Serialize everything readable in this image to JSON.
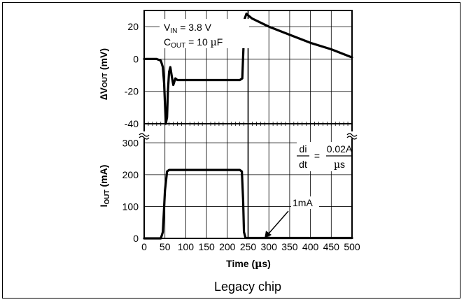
{
  "caption": "Legacy chip",
  "chart_data": {
    "type": "line",
    "x_label_main": "Time (",
    "x_label_mu": "µ",
    "x_label_end": "s)",
    "x_ticks": [
      0,
      50,
      100,
      150,
      200,
      250,
      300,
      350,
      400,
      450,
      500
    ],
    "xlim": [
      0,
      500
    ],
    "grid": true,
    "panels": [
      {
        "name": "top",
        "ylabel_prefix": "∆V",
        "ylabel_sub": "OUT",
        "ylabel_suffix": " (mV)",
        "ylim": [
          -40,
          30
        ],
        "y_ticks": [
          -40,
          -20,
          0,
          20
        ],
        "series": [
          {
            "x": [
              0,
              30,
              40,
              45,
              48,
              52,
              55,
              57,
              60,
              63,
              66,
              70,
              75,
              80,
              90,
              100,
              150,
              200,
              230,
              236,
              240,
              242,
              246,
              250,
              260,
              300,
              350,
              400,
              450,
              500
            ],
            "y": [
              0,
              0,
              -1,
              -5,
              -15,
              -40,
              -36,
              -20,
              -8,
              -5,
              -10,
              -16,
              -12,
              -13,
              -13,
              -13,
              -13,
              -13,
              -13,
              -12,
              15,
              25,
              28,
              27,
              25,
              20,
              15,
              10,
              6,
              1
            ]
          }
        ]
      },
      {
        "name": "bottom",
        "ylabel_prefix": "I",
        "ylabel_sub": "OUT",
        "ylabel_suffix": " (mA)",
        "ylim": [
          0,
          360
        ],
        "y_ticks": [
          0,
          100,
          200,
          300
        ],
        "series": [
          {
            "x": [
              0,
              30,
              40,
              45,
              50,
              55,
              60,
              100,
              150,
              200,
              230,
              235,
              238,
              240,
              244,
              250,
              300,
              400,
              500
            ],
            "y": [
              0,
              0,
              0,
              20,
              150,
              210,
              215,
              215,
              215,
              215,
              215,
              210,
              120,
              20,
              1,
              1,
              1,
              1,
              1
            ]
          }
        ]
      }
    ],
    "annotations": {
      "vin": {
        "prefix": "V",
        "sub": "IN",
        "rest": " = 3.8 V"
      },
      "cout": {
        "prefix": "C",
        "sub": "OUT",
        "rest": " = 10 ",
        "mu": "µ",
        "unit": "F"
      },
      "didt_num": "di",
      "didt_den": "dt",
      "equals": "=",
      "rate_num": "0.02A",
      "rate_den_mu": "µ",
      "rate_den": "s",
      "one_ma": "1mA"
    }
  }
}
